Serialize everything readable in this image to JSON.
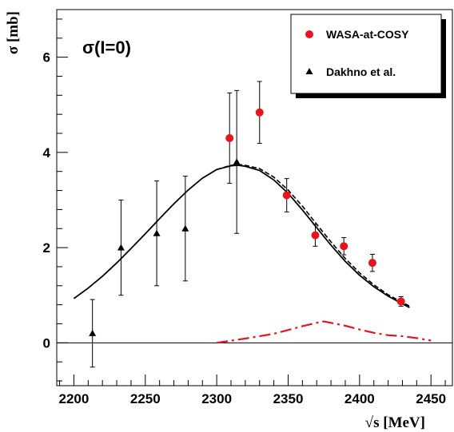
{
  "chart_data": {
    "type": "scatter",
    "title": "σ(I=0)",
    "xlabel": "√s  [MeV]",
    "ylabel": "σ [mb]",
    "xlim": [
      2188,
      2465
    ],
    "ylim": [
      -0.9,
      7.0
    ],
    "x_ticks": [
      2200,
      2250,
      2300,
      2350,
      2400,
      2450
    ],
    "y_ticks": [
      0,
      2,
      4,
      6
    ],
    "grid": false,
    "legend_position": "top-right",
    "series": [
      {
        "name": "WASA-at-COSY",
        "marker": "circle",
        "color": "#e8141b",
        "points": [
          {
            "x": 2309,
            "y": 4.3,
            "yerr": 0.95
          },
          {
            "x": 2330,
            "y": 4.84,
            "yerr": 0.65
          },
          {
            "x": 2349,
            "y": 3.1,
            "yerr": 0.35
          },
          {
            "x": 2369,
            "y": 2.26,
            "yerr": 0.23
          },
          {
            "x": 2389,
            "y": 2.03,
            "yerr": 0.18
          },
          {
            "x": 2409,
            "y": 1.68,
            "yerr": 0.18
          },
          {
            "x": 2429,
            "y": 0.87,
            "yerr": 0.1
          }
        ]
      },
      {
        "name": "Dakhno et al.",
        "marker": "triangle",
        "color": "#000000",
        "points": [
          {
            "x": 2213,
            "y": 0.2,
            "yerr": 0.71
          },
          {
            "x": 2233,
            "y": 2.0,
            "yerr": 1.0
          },
          {
            "x": 2258,
            "y": 2.3,
            "yerr": 1.1
          },
          {
            "x": 2278,
            "y": 2.4,
            "yerr": 1.1
          },
          {
            "x": 2314,
            "y": 3.8,
            "yerr": 1.5
          }
        ]
      }
    ],
    "curves": [
      {
        "style": "solid",
        "color": "#000000",
        "x": [
          2200,
          2210,
          2220,
          2230,
          2240,
          2250,
          2260,
          2270,
          2280,
          2290,
          2300,
          2310,
          2315,
          2320,
          2330,
          2340,
          2350,
          2360,
          2370,
          2380,
          2390,
          2400,
          2410,
          2420,
          2430,
          2435
        ],
        "y": [
          0.93,
          1.15,
          1.4,
          1.68,
          1.98,
          2.29,
          2.61,
          2.92,
          3.21,
          3.46,
          3.64,
          3.72,
          3.73,
          3.71,
          3.62,
          3.42,
          3.14,
          2.79,
          2.42,
          2.05,
          1.71,
          1.42,
          1.18,
          0.98,
          0.82,
          0.74
        ]
      },
      {
        "style": "dashed",
        "color": "#000000",
        "x": [
          2300,
          2310,
          2315,
          2320,
          2330,
          2340,
          2350,
          2360,
          2370,
          2380,
          2390,
          2400,
          2410,
          2420,
          2430,
          2435
        ],
        "y": [
          3.64,
          3.73,
          3.75,
          3.73,
          3.66,
          3.48,
          3.21,
          2.87,
          2.49,
          2.12,
          1.77,
          1.47,
          1.22,
          1.01,
          0.85,
          0.77
        ]
      },
      {
        "style": "dash-dot",
        "color": "#e8141b",
        "x": [
          2300,
          2320,
          2340,
          2360,
          2370,
          2375,
          2380,
          2390,
          2400,
          2410,
          2420,
          2430,
          2440,
          2450
        ],
        "y": [
          0.0,
          0.09,
          0.19,
          0.35,
          0.42,
          0.45,
          0.42,
          0.36,
          0.28,
          0.21,
          0.16,
          0.14,
          0.1,
          0.05
        ]
      }
    ]
  }
}
